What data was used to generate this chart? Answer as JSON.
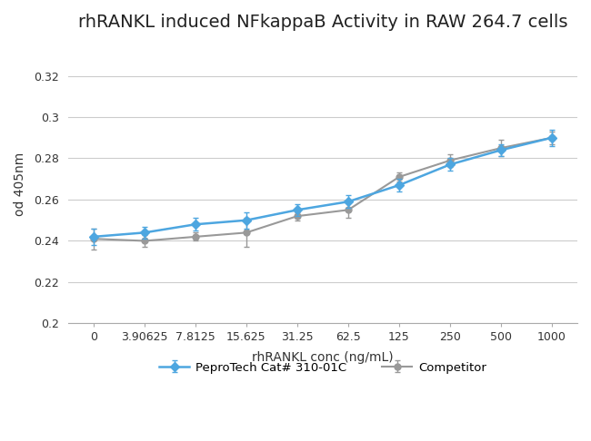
{
  "title": "rhRANKL induced NFkappaB Activity in RAW 264.7 cells",
  "xlabel": "rhRANKL conc (ng/mL)",
  "ylabel": "od 405nm",
  "x_labels": [
    "0",
    "3.90625",
    "7.8125",
    "15.625",
    "31.25",
    "62.5",
    "125",
    "250",
    "500",
    "1000"
  ],
  "x_values": [
    0,
    1,
    2,
    3,
    4,
    5,
    6,
    7,
    8,
    9
  ],
  "pepro_y": [
    0.242,
    0.244,
    0.248,
    0.25,
    0.255,
    0.259,
    0.267,
    0.277,
    0.284,
    0.29
  ],
  "pepro_err": [
    0.004,
    0.003,
    0.003,
    0.004,
    0.003,
    0.003,
    0.003,
    0.003,
    0.003,
    0.004
  ],
  "comp_y": [
    0.241,
    0.24,
    0.242,
    0.244,
    0.252,
    0.255,
    0.271,
    0.279,
    0.285,
    0.29
  ],
  "comp_err": [
    0.005,
    0.003,
    0.002,
    0.007,
    0.002,
    0.004,
    0.002,
    0.003,
    0.004,
    0.003
  ],
  "pepro_color": "#4da6e0",
  "comp_color": "#999999",
  "ylim": [
    0.2,
    0.335
  ],
  "yticks": [
    0.2,
    0.22,
    0.24,
    0.26,
    0.28,
    0.3,
    0.32
  ],
  "legend_pepro": "PeproTech Cat# 310-01C",
  "legend_comp": "Competitor",
  "bg_color": "#ffffff",
  "grid_color": "#cccccc",
  "title_fontsize": 14,
  "label_fontsize": 10,
  "tick_fontsize": 9
}
